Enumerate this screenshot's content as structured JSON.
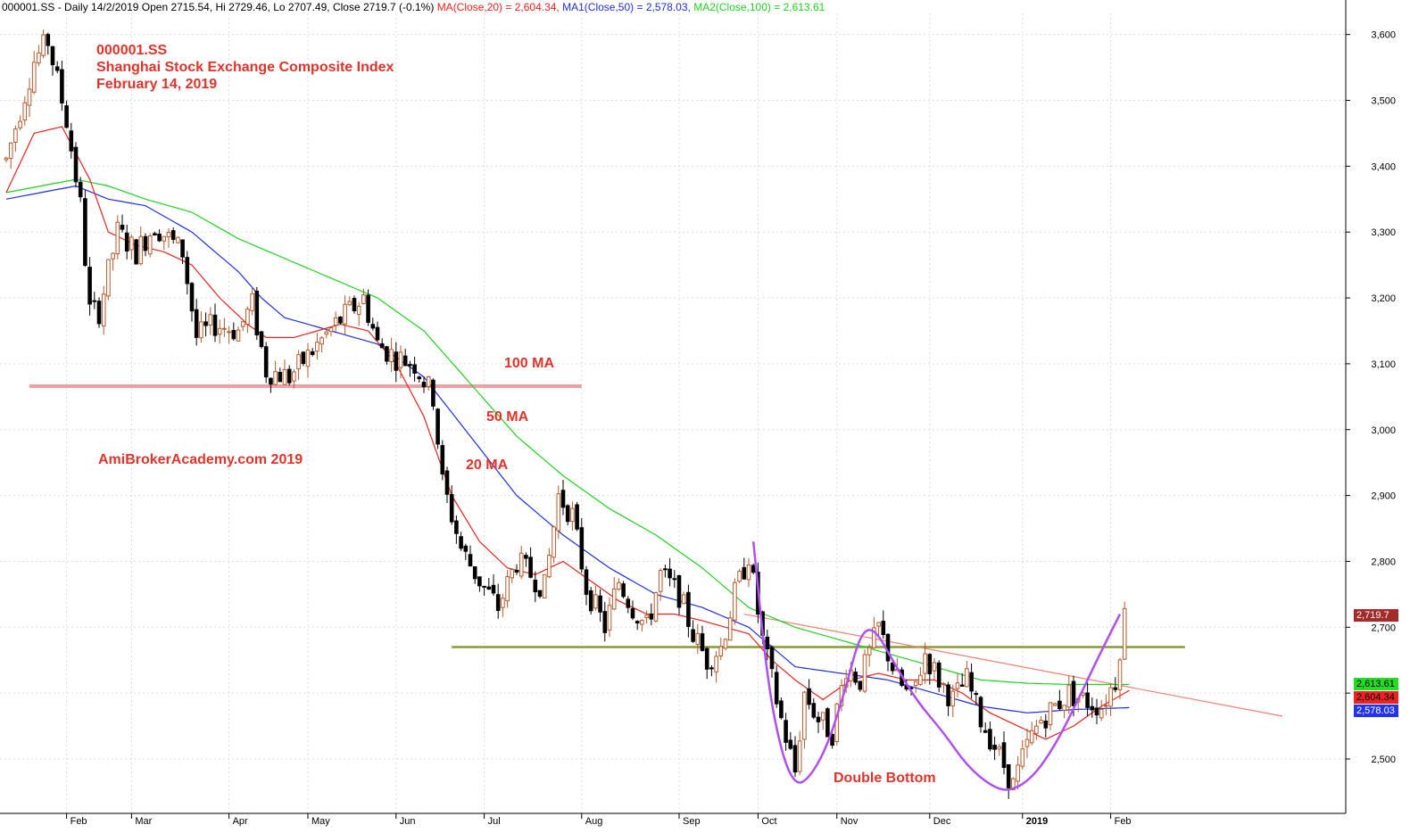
{
  "header": {
    "prefix": "000001.SS - Daily 14/2/2019 Open 2715.54, Hi 2729.46, Lo 2707.49, Close 2719.7 (-0.1%)",
    "ma20": "MA(Close,20) = 2,604.34,",
    "ma50": "MA1(Close,50) = 2,578.03,",
    "ma100": "MA2(Close,100) = 2,613.61"
  },
  "annotations": {
    "ticker": "000001.SS",
    "name": "Shanghai Stock Exchange Composite Index",
    "date": "February 14, 2019",
    "watermark": "AmiBrokerAcademy.com  2019",
    "ma100": "100 MA",
    "ma50": "50 MA",
    "ma20": "20 MA",
    "pattern": "Double Bottom"
  },
  "tags": {
    "last": "2,719.7",
    "ma100": "2,613.61",
    "ma20": "2,604.34",
    "ma50": "2,578.03"
  },
  "colors": {
    "ma20": "#e8231c",
    "ma50": "#1d2fe0",
    "ma100": "#1ed31e",
    "up_candle": "#b55a2c",
    "down_candle": "#000000",
    "support": "#f0a0a0",
    "neckline": "#8a9a35",
    "trendline": "#f08070",
    "pattern": "#b04ff0"
  },
  "chart_data": {
    "type": "candlestick",
    "ylim": [
      2430,
      3630
    ],
    "yticks": [
      2500,
      2600,
      2700,
      2800,
      2900,
      3000,
      3100,
      3200,
      3300,
      3400,
      3500,
      3600
    ],
    "ytick_labels": [
      "2,500",
      "",
      "2,700",
      "2,800",
      "2,900",
      "3,000",
      "3,100",
      "3,200",
      "3,300",
      "3,400",
      "3,500",
      "3,600"
    ],
    "x_labels": [
      "Feb",
      "Mar",
      "Apr",
      "May",
      "Jun",
      "Jul",
      "Aug",
      "Sep",
      "Oct",
      "Nov",
      "Dec",
      "2019",
      "Feb"
    ],
    "x_domain": [
      0,
      300
    ],
    "x_label_pos": [
      13,
      27,
      48,
      65,
      84,
      103,
      124,
      145,
      162,
      179,
      199,
      219,
      238
    ],
    "ohlc_anchors": [
      [
        0,
        3410
      ],
      [
        6,
        3560
      ],
      [
        9,
        3590
      ],
      [
        13,
        3470
      ],
      [
        16,
        3340
      ],
      [
        18,
        3180
      ],
      [
        20,
        3180
      ],
      [
        24,
        3300
      ],
      [
        28,
        3270
      ],
      [
        32,
        3310
      ],
      [
        38,
        3270
      ],
      [
        41,
        3140
      ],
      [
        45,
        3160
      ],
      [
        50,
        3150
      ],
      [
        53,
        3190
      ],
      [
        56,
        3090
      ],
      [
        61,
        3080
      ],
      [
        66,
        3120
      ],
      [
        71,
        3160
      ],
      [
        77,
        3200
      ],
      [
        80,
        3130
      ],
      [
        84,
        3110
      ],
      [
        88,
        3100
      ],
      [
        92,
        3050
      ],
      [
        94,
        2920
      ],
      [
        98,
        2820
      ],
      [
        102,
        2770
      ],
      [
        106,
        2730
      ],
      [
        110,
        2800
      ],
      [
        113,
        2780
      ],
      [
        116,
        2760
      ],
      [
        119,
        2900
      ],
      [
        122,
        2870
      ],
      [
        125,
        2760
      ],
      [
        129,
        2700
      ],
      [
        132,
        2770
      ],
      [
        135,
        2730
      ],
      [
        138,
        2700
      ],
      [
        141,
        2780
      ],
      [
        145,
        2750
      ],
      [
        148,
        2690
      ],
      [
        151,
        2650
      ],
      [
        154,
        2670
      ],
      [
        157,
        2750
      ],
      [
        160,
        2810
      ],
      [
        163,
        2680
      ],
      [
        167,
        2560
      ],
      [
        170,
        2480
      ],
      [
        172,
        2600
      ],
      [
        175,
        2560
      ],
      [
        178,
        2540
      ],
      [
        181,
        2640
      ],
      [
        184,
        2620
      ],
      [
        188,
        2700
      ],
      [
        192,
        2620
      ],
      [
        195,
        2590
      ],
      [
        198,
        2660
      ],
      [
        201,
        2620
      ],
      [
        204,
        2590
      ],
      [
        207,
        2620
      ],
      [
        210,
        2560
      ],
      [
        213,
        2520
      ],
      [
        215,
        2490
      ],
      [
        217,
        2460
      ],
      [
        220,
        2520
      ],
      [
        223,
        2560
      ],
      [
        226,
        2580
      ],
      [
        229,
        2600
      ],
      [
        232,
        2590
      ],
      [
        236,
        2580
      ],
      [
        239,
        2620
      ],
      [
        241,
        2720
      ]
    ],
    "ma100_anchors": [
      [
        0,
        3360
      ],
      [
        15,
        3380
      ],
      [
        22,
        3370
      ],
      [
        30,
        3350
      ],
      [
        40,
        3330
      ],
      [
        50,
        3290
      ],
      [
        60,
        3260
      ],
      [
        70,
        3230
      ],
      [
        80,
        3200
      ],
      [
        90,
        3150
      ],
      [
        100,
        3070
      ],
      [
        110,
        2990
      ],
      [
        120,
        2930
      ],
      [
        130,
        2880
      ],
      [
        140,
        2840
      ],
      [
        150,
        2790
      ],
      [
        160,
        2730
      ],
      [
        170,
        2700
      ],
      [
        180,
        2680
      ],
      [
        190,
        2660
      ],
      [
        200,
        2640
      ],
      [
        210,
        2620
      ],
      [
        220,
        2615
      ],
      [
        230,
        2613
      ],
      [
        242,
        2613
      ]
    ],
    "ma50_anchors": [
      [
        0,
        3350
      ],
      [
        15,
        3370
      ],
      [
        22,
        3350
      ],
      [
        30,
        3340
      ],
      [
        40,
        3300
      ],
      [
        50,
        3240
      ],
      [
        55,
        3200
      ],
      [
        60,
        3170
      ],
      [
        70,
        3150
      ],
      [
        80,
        3130
      ],
      [
        90,
        3080
      ],
      [
        100,
        2990
      ],
      [
        110,
        2900
      ],
      [
        120,
        2840
      ],
      [
        130,
        2790
      ],
      [
        140,
        2750
      ],
      [
        150,
        2730
      ],
      [
        160,
        2700
      ],
      [
        165,
        2670
      ],
      [
        170,
        2640
      ],
      [
        180,
        2630
      ],
      [
        190,
        2620
      ],
      [
        200,
        2600
      ],
      [
        210,
        2580
      ],
      [
        220,
        2570
      ],
      [
        230,
        2575
      ],
      [
        242,
        2578
      ]
    ],
    "ma20_anchors": [
      [
        0,
        3360
      ],
      [
        6,
        3450
      ],
      [
        12,
        3460
      ],
      [
        18,
        3380
      ],
      [
        22,
        3300
      ],
      [
        28,
        3280
      ],
      [
        34,
        3270
      ],
      [
        40,
        3250
      ],
      [
        46,
        3200
      ],
      [
        52,
        3160
      ],
      [
        56,
        3140
      ],
      [
        62,
        3140
      ],
      [
        67,
        3150
      ],
      [
        72,
        3160
      ],
      [
        78,
        3150
      ],
      [
        84,
        3100
      ],
      [
        90,
        3020
      ],
      [
        96,
        2900
      ],
      [
        102,
        2830
      ],
      [
        108,
        2790
      ],
      [
        114,
        2780
      ],
      [
        120,
        2800
      ],
      [
        126,
        2770
      ],
      [
        132,
        2740
      ],
      [
        138,
        2720
      ],
      [
        144,
        2720
      ],
      [
        150,
        2710
      ],
      [
        155,
        2700
      ],
      [
        160,
        2690
      ],
      [
        165,
        2650
      ],
      [
        170,
        2620
      ],
      [
        176,
        2590
      ],
      [
        182,
        2620
      ],
      [
        188,
        2630
      ],
      [
        194,
        2620
      ],
      [
        200,
        2620
      ],
      [
        206,
        2600
      ],
      [
        212,
        2570
      ],
      [
        218,
        2550
      ],
      [
        224,
        2530
      ],
      [
        230,
        2550
      ],
      [
        236,
        2580
      ],
      [
        242,
        2604
      ]
    ],
    "support_line": {
      "x": [
        5,
        124
      ],
      "y": [
        3066,
        3066
      ]
    },
    "neckline": {
      "x": [
        96,
        254
      ],
      "y": [
        2670,
        2670
      ]
    },
    "trendline": {
      "x": [
        159,
        275
      ],
      "y": [
        2720,
        2565
      ]
    },
    "double_bottom": [
      [
        161,
        2830
      ],
      [
        164,
        2620
      ],
      [
        167,
        2510
      ],
      [
        170,
        2460
      ],
      [
        173,
        2470
      ],
      [
        177,
        2520
      ],
      [
        181,
        2610
      ],
      [
        184,
        2690
      ],
      [
        187,
        2700
      ],
      [
        191,
        2650
      ],
      [
        196,
        2590
      ],
      [
        202,
        2540
      ],
      [
        207,
        2490
      ],
      [
        212,
        2460
      ],
      [
        216,
        2450
      ],
      [
        221,
        2470
      ],
      [
        226,
        2520
      ],
      [
        231,
        2590
      ],
      [
        235,
        2650
      ],
      [
        240,
        2720
      ]
    ]
  }
}
